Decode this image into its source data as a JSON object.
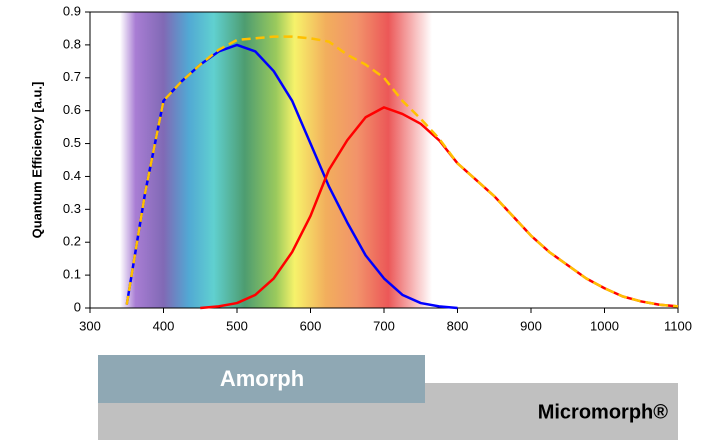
{
  "chart_data": {
    "type": "line",
    "y_label": "Quantum Efficiency [a.u.]",
    "annotations": [
      "Amorph",
      "Micromorph®"
    ],
    "x": [
      350,
      375,
      400,
      425,
      450,
      475,
      500,
      525,
      550,
      575,
      600,
      625,
      650,
      675,
      700,
      725,
      750,
      775,
      800,
      825,
      850,
      875,
      900,
      925,
      950,
      975,
      1000,
      1025,
      1050,
      1075,
      1100
    ],
    "series": [
      {
        "color": "#0000ff",
        "style": "solid",
        "values": [
          0.01,
          0.35,
          0.63,
          0.69,
          0.74,
          0.78,
          0.8,
          0.78,
          0.72,
          0.63,
          0.5,
          0.37,
          0.26,
          0.16,
          0.09,
          0.04,
          0.015,
          0.005,
          0,
          null,
          null,
          null,
          null,
          null,
          null,
          null,
          null,
          null,
          null,
          null,
          null
        ]
      },
      {
        "color": "#ff0000",
        "style": "solid",
        "values": [
          null,
          null,
          null,
          null,
          0,
          0.005,
          0.015,
          0.04,
          0.09,
          0.17,
          0.28,
          0.42,
          0.51,
          0.58,
          0.61,
          0.59,
          0.56,
          0.51,
          0.44,
          0.39,
          0.34,
          0.28,
          0.22,
          0.17,
          0.13,
          0.09,
          0.06,
          0.035,
          0.02,
          0.01,
          0.005
        ]
      },
      {
        "color": "#ffc000",
        "style": "dashed",
        "values": [
          0.01,
          0.35,
          0.63,
          0.69,
          0.74,
          0.785,
          0.815,
          0.82,
          0.825,
          0.825,
          0.82,
          0.81,
          0.77,
          0.74,
          0.7,
          0.63,
          0.575,
          0.515,
          0.44,
          0.39,
          0.34,
          0.28,
          0.22,
          0.17,
          0.13,
          0.09,
          0.06,
          0.035,
          0.02,
          0.01,
          0.005
        ]
      }
    ],
    "xlim": [
      300,
      1100
    ],
    "xticks": [
      300,
      400,
      500,
      600,
      700,
      800,
      900,
      1000,
      1100
    ],
    "ylim": [
      0,
      0.9
    ],
    "yticks": [
      0,
      0.1,
      0.2,
      0.3,
      0.4,
      0.5,
      0.6,
      0.7,
      0.8,
      0.9
    ]
  }
}
